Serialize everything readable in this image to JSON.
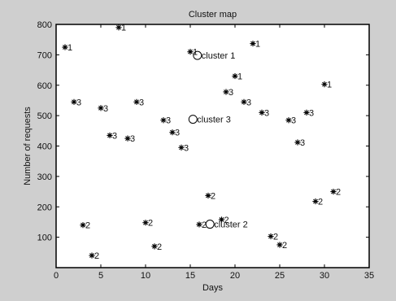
{
  "chart_data": {
    "type": "scatter",
    "title": "Cluster map",
    "xlabel": "Days",
    "ylabel": "Number of requests",
    "xlim": [
      0,
      35
    ],
    "ylim": [
      0,
      800
    ],
    "xticks": [
      0,
      5,
      10,
      15,
      20,
      25,
      30,
      35
    ],
    "yticks": [
      100,
      200,
      300,
      400,
      500,
      600,
      700,
      800
    ],
    "grid": false,
    "marker": "*",
    "points": [
      {
        "x": 1,
        "y": 725,
        "label": "1"
      },
      {
        "x": 7,
        "y": 790,
        "label": "1"
      },
      {
        "x": 15,
        "y": 710,
        "label": "1"
      },
      {
        "x": 20,
        "y": 630,
        "label": "1"
      },
      {
        "x": 22,
        "y": 737,
        "label": "1"
      },
      {
        "x": 30,
        "y": 603,
        "label": "1"
      },
      {
        "x": 2,
        "y": 545,
        "label": "3"
      },
      {
        "x": 5,
        "y": 525,
        "label": "3"
      },
      {
        "x": 6,
        "y": 435,
        "label": "3"
      },
      {
        "x": 8,
        "y": 425,
        "label": "3"
      },
      {
        "x": 9,
        "y": 545,
        "label": "3"
      },
      {
        "x": 12,
        "y": 485,
        "label": "3"
      },
      {
        "x": 13,
        "y": 445,
        "label": "3"
      },
      {
        "x": 14,
        "y": 395,
        "label": "3"
      },
      {
        "x": 19,
        "y": 578,
        "label": "3"
      },
      {
        "x": 21,
        "y": 545,
        "label": "3"
      },
      {
        "x": 23,
        "y": 510,
        "label": "3"
      },
      {
        "x": 26,
        "y": 485,
        "label": "3"
      },
      {
        "x": 27,
        "y": 412,
        "label": "3"
      },
      {
        "x": 28,
        "y": 510,
        "label": "3"
      },
      {
        "x": 3,
        "y": 140,
        "label": "2"
      },
      {
        "x": 4,
        "y": 40,
        "label": "2"
      },
      {
        "x": 10,
        "y": 148,
        "label": "2"
      },
      {
        "x": 11,
        "y": 70,
        "label": "2"
      },
      {
        "x": 16,
        "y": 142,
        "label": "2"
      },
      {
        "x": 17,
        "y": 237,
        "label": "2"
      },
      {
        "x": 18.5,
        "y": 158,
        "label": "2"
      },
      {
        "x": 24,
        "y": 103,
        "label": "2"
      },
      {
        "x": 25,
        "y": 75,
        "label": "2"
      },
      {
        "x": 29,
        "y": 218,
        "label": "2"
      },
      {
        "x": 31,
        "y": 250,
        "label": "2"
      }
    ],
    "centroids": [
      {
        "x": 15.8,
        "y": 698,
        "label": "cluster 1"
      },
      {
        "x": 17.2,
        "y": 143,
        "label": "cluster 2"
      },
      {
        "x": 15.3,
        "y": 488,
        "label": "cluster 3"
      }
    ]
  }
}
